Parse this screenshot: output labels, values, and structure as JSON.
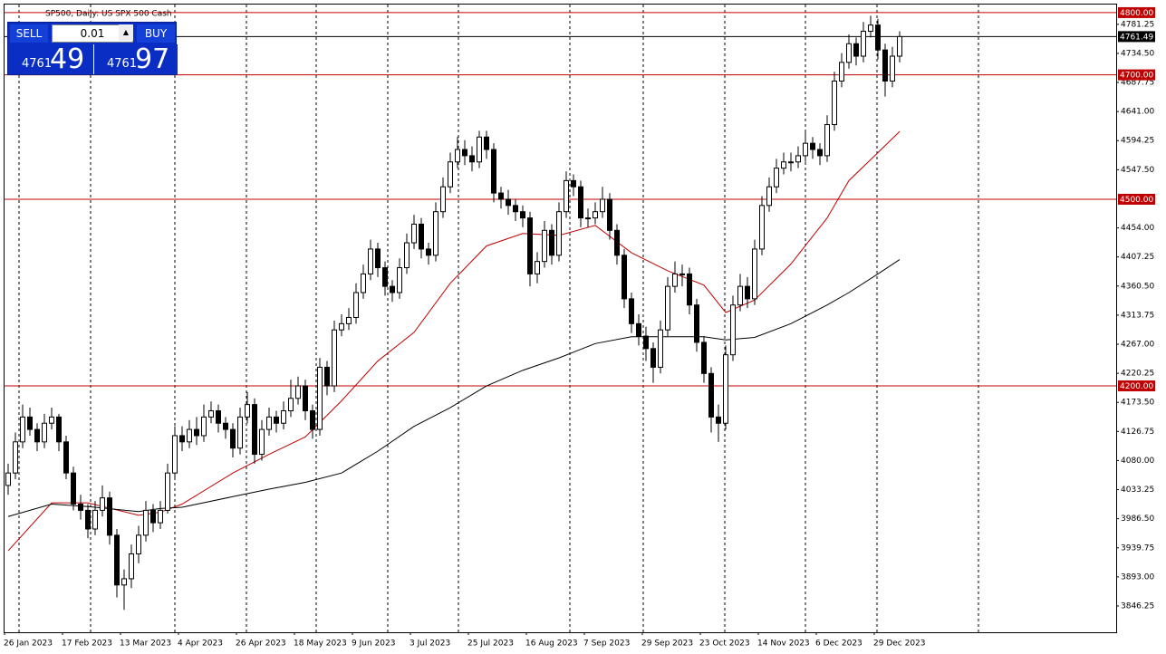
{
  "chart_data": {
    "type": "candlestick",
    "title": "SP500, Daily:  US SPX 500 Cash",
    "ylim": [
      3804,
      4813
    ],
    "yticks": [
      4781.25,
      {
        "value": 4734.5,
        "label": "4734.50"
      },
      4687.75,
      {
        "value": 4641,
        "label": "4641.00"
      },
      4594.25,
      {
        "value": 4547.5,
        "label": "4547.50"
      },
      {
        "value": 4454,
        "label": "4454.00"
      },
      4407.25,
      {
        "value": 4360.5,
        "label": "4360.50"
      },
      4313.75,
      {
        "value": 4267,
        "label": "4267.00"
      },
      4220.25,
      {
        "value": 4173.5,
        "label": "4173.50"
      },
      4126.75,
      {
        "value": 4080,
        "label": "4080.00"
      },
      4033.25,
      {
        "value": 3986.5,
        "label": "3986.50"
      },
      3939.75,
      {
        "value": 3893,
        "label": "3893.00"
      },
      3846.25
    ],
    "x_labels": [
      "26 Jan 2023",
      "17 Feb 2023",
      "13 Mar 2023",
      "4 Apr 2023",
      "26 Apr 2023",
      "18 May 2023",
      "9 Jun 2023",
      "3 Jul 2023",
      "25 Jul 2023",
      "16 Aug 2023",
      "7 Sep 2023",
      "29 Sep 2023",
      "23 Oct 2023",
      "14 Nov 2023",
      "6 Dec 2023",
      "29 Dec 2023"
    ],
    "up_color": "#ffffff",
    "down_color": "#000000",
    "candles": [
      [
        4040,
        4075,
        4025,
        4060
      ],
      [
        4060,
        4125,
        4050,
        4110
      ],
      [
        4110,
        4170,
        4100,
        4150
      ],
      [
        4150,
        4165,
        4120,
        4130
      ],
      [
        4130,
        4140,
        4095,
        4110
      ],
      [
        4110,
        4155,
        4100,
        4140
      ],
      [
        4140,
        4165,
        4130,
        4150
      ],
      [
        4150,
        4155,
        4095,
        4110
      ],
      [
        4110,
        4120,
        4050,
        4060
      ],
      [
        4060,
        4070,
        4000,
        4010
      ],
      [
        4010,
        4025,
        3985,
        4000
      ],
      [
        4000,
        4010,
        3955,
        3970
      ],
      [
        3970,
        4015,
        3960,
        4000
      ],
      [
        4000,
        4040,
        3990,
        4020
      ],
      [
        4020,
        4030,
        3945,
        3960
      ],
      [
        3960,
        3970,
        3860,
        3880
      ],
      [
        3880,
        3905,
        3840,
        3890
      ],
      [
        3890,
        3945,
        3875,
        3930
      ],
      [
        3930,
        3975,
        3915,
        3960
      ],
      [
        3960,
        4015,
        3950,
        4000
      ],
      [
        4000,
        4010,
        3965,
        3980
      ],
      [
        3980,
        4015,
        3970,
        4000
      ],
      [
        4000,
        4075,
        3995,
        4060
      ],
      [
        4060,
        4135,
        4050,
        4120
      ],
      [
        4120,
        4135,
        4095,
        4110
      ],
      [
        4110,
        4145,
        4100,
        4130
      ],
      [
        4130,
        4150,
        4105,
        4120
      ],
      [
        4120,
        4170,
        4110,
        4150
      ],
      [
        4150,
        4175,
        4140,
        4160
      ],
      [
        4160,
        4170,
        4125,
        4140
      ],
      [
        4140,
        4150,
        4115,
        4130
      ],
      [
        4130,
        4140,
        4085,
        4100
      ],
      [
        4100,
        4165,
        4090,
        4150
      ],
      [
        4150,
        4190,
        4140,
        4170
      ],
      [
        4170,
        4180,
        4075,
        4090
      ],
      [
        4090,
        4145,
        4080,
        4130
      ],
      [
        4130,
        4165,
        4120,
        4150
      ],
      [
        4150,
        4160,
        4125,
        4140
      ],
      [
        4140,
        4175,
        4130,
        4160
      ],
      [
        4160,
        4210,
        4150,
        4180
      ],
      [
        4180,
        4215,
        4170,
        4200
      ],
      [
        4200,
        4210,
        4145,
        4160
      ],
      [
        4160,
        4170,
        4115,
        4130
      ],
      [
        4130,
        4245,
        4120,
        4230
      ],
      [
        4230,
        4240,
        4185,
        4200
      ],
      [
        4200,
        4305,
        4190,
        4290
      ],
      [
        4290,
        4315,
        4280,
        4300
      ],
      [
        4300,
        4325,
        4290,
        4310
      ],
      [
        4310,
        4365,
        4300,
        4350
      ],
      [
        4350,
        4395,
        4340,
        4380
      ],
      [
        4380,
        4435,
        4370,
        4420
      ],
      [
        4420,
        4430,
        4375,
        4390
      ],
      [
        4390,
        4400,
        4345,
        4360
      ],
      [
        4360,
        4370,
        4335,
        4350
      ],
      [
        4350,
        4405,
        4340,
        4390
      ],
      [
        4390,
        4445,
        4380,
        4430
      ],
      [
        4430,
        4475,
        4420,
        4460
      ],
      [
        4460,
        4470,
        4405,
        4420
      ],
      [
        4420,
        4430,
        4395,
        4410
      ],
      [
        4410,
        4495,
        4400,
        4480
      ],
      [
        4480,
        4535,
        4470,
        4520
      ],
      [
        4520,
        4575,
        4510,
        4560
      ],
      [
        4560,
        4600,
        4550,
        4580
      ],
      [
        4580,
        4595,
        4555,
        4570
      ],
      [
        4570,
        4585,
        4545,
        4560
      ],
      [
        4560,
        4610,
        4550,
        4600
      ],
      [
        4600,
        4610,
        4565,
        4580
      ],
      [
        4580,
        4590,
        4495,
        4510
      ],
      [
        4510,
        4520,
        4485,
        4500
      ],
      [
        4500,
        4515,
        4475,
        4490
      ],
      [
        4490,
        4500,
        4465,
        4480
      ],
      [
        4480,
        4490,
        4455,
        4470
      ],
      [
        4470,
        4480,
        4360,
        4380
      ],
      [
        4380,
        4415,
        4365,
        4400
      ],
      [
        4400,
        4465,
        4390,
        4450
      ],
      [
        4450,
        4460,
        4395,
        4410
      ],
      [
        4410,
        4495,
        4400,
        4480
      ],
      [
        4480,
        4545,
        4470,
        4530
      ],
      [
        4530,
        4540,
        4505,
        4520
      ],
      [
        4520,
        4530,
        4455,
        4470
      ],
      [
        4470,
        4485,
        4455,
        4470
      ],
      [
        4470,
        4495,
        4460,
        4480
      ],
      [
        4480,
        4520,
        4470,
        4500
      ],
      [
        4500,
        4510,
        4435,
        4450
      ],
      [
        4450,
        4460,
        4395,
        4410
      ],
      [
        4410,
        4420,
        4325,
        4340
      ],
      [
        4340,
        4350,
        4285,
        4300
      ],
      [
        4300,
        4315,
        4265,
        4280
      ],
      [
        4280,
        4295,
        4240,
        4260
      ],
      [
        4260,
        4270,
        4205,
        4230
      ],
      [
        4230,
        4305,
        4220,
        4290
      ],
      [
        4290,
        4375,
        4280,
        4360
      ],
      [
        4360,
        4400,
        4350,
        4380
      ],
      [
        4380,
        4395,
        4360,
        4380
      ],
      [
        4380,
        4390,
        4315,
        4330
      ],
      [
        4330,
        4340,
        4255,
        4270
      ],
      [
        4270,
        4280,
        4205,
        4220
      ],
      [
        4220,
        4230,
        4125,
        4150
      ],
      [
        4150,
        4170,
        4110,
        4140
      ],
      [
        4140,
        4265,
        4130,
        4250
      ],
      [
        4250,
        4345,
        4240,
        4330
      ],
      [
        4330,
        4380,
        4320,
        4360
      ],
      [
        4360,
        4375,
        4325,
        4340
      ],
      [
        4340,
        4435,
        4330,
        4420
      ],
      [
        4420,
        4505,
        4410,
        4490
      ],
      [
        4490,
        4535,
        4480,
        4520
      ],
      [
        4520,
        4565,
        4510,
        4550
      ],
      [
        4550,
        4575,
        4540,
        4560
      ],
      [
        4560,
        4575,
        4545,
        4560
      ],
      [
        4560,
        4585,
        4550,
        4570
      ],
      [
        4570,
        4610,
        4560,
        4590
      ],
      [
        4590,
        4600,
        4565,
        4580
      ],
      [
        4580,
        4590,
        4555,
        4570
      ],
      [
        4570,
        4635,
        4560,
        4620
      ],
      [
        4620,
        4705,
        4610,
        4690
      ],
      [
        4690,
        4735,
        4680,
        4720
      ],
      [
        4720,
        4765,
        4710,
        4750
      ],
      [
        4750,
        4760,
        4715,
        4730
      ],
      [
        4730,
        4785,
        4720,
        4770
      ],
      [
        4770,
        4795,
        4760,
        4780
      ],
      [
        4780,
        4790,
        4725,
        4740
      ],
      [
        4740,
        4750,
        4665,
        4690
      ],
      [
        4690,
        4745,
        4680,
        4730
      ],
      [
        4730,
        4770,
        4720,
        4761.49
      ]
    ],
    "series": [
      {
        "color": "#c00000",
        "x": [
          0,
          6,
          11,
          18,
          21,
          24,
          31,
          36,
          41,
          46,
          51,
          56,
          61,
          66,
          71,
          76,
          81,
          86,
          91,
          96,
          99,
          103,
          108,
          113,
          116,
          120,
          123
        ],
        "values": [
          3935,
          4012,
          4012,
          3992,
          3997,
          4010,
          4060,
          4090,
          4118,
          4176,
          4240,
          4286,
          4365,
          4425,
          4445,
          4442,
          4458,
          4414,
          4385,
          4362,
          4318,
          4338,
          4396,
          4470,
          4530,
          4575,
          4609
        ]
      },
      {
        "color": "#000000",
        "x": [
          0,
          6,
          11,
          18,
          21,
          24,
          31,
          36,
          41,
          46,
          51,
          56,
          61,
          66,
          71,
          76,
          81,
          86,
          91,
          96,
          99,
          103,
          108,
          113,
          116,
          120,
          123
        ],
        "values": [
          3990,
          4010,
          4006,
          3998,
          4003,
          4005,
          4022,
          4034,
          4045,
          4060,
          4095,
          4135,
          4165,
          4200,
          4225,
          4245,
          4268,
          4279,
          4279,
          4279,
          4274,
          4278,
          4300,
          4330,
          4350,
          4380,
          4403
        ]
      }
    ],
    "hlines": [
      {
        "value": 4800,
        "label": "4800.00",
        "color": "#c00000"
      },
      {
        "value": 4761.49,
        "label": "4761.49",
        "color": "#000000"
      },
      {
        "value": 4700,
        "label": "4700.00",
        "color": "#c00000"
      },
      {
        "value": 4500,
        "label": "4500.00",
        "color": "#c00000"
      },
      {
        "value": 4200,
        "label": "4200.00",
        "color": "#c00000"
      }
    ]
  },
  "trade_panel": {
    "sell": "SELL",
    "lot": "0.01",
    "buy": "BUY",
    "bid_small": "4761",
    "bid_big": "49",
    "ask_small": "4761",
    "ask_big": "97"
  }
}
